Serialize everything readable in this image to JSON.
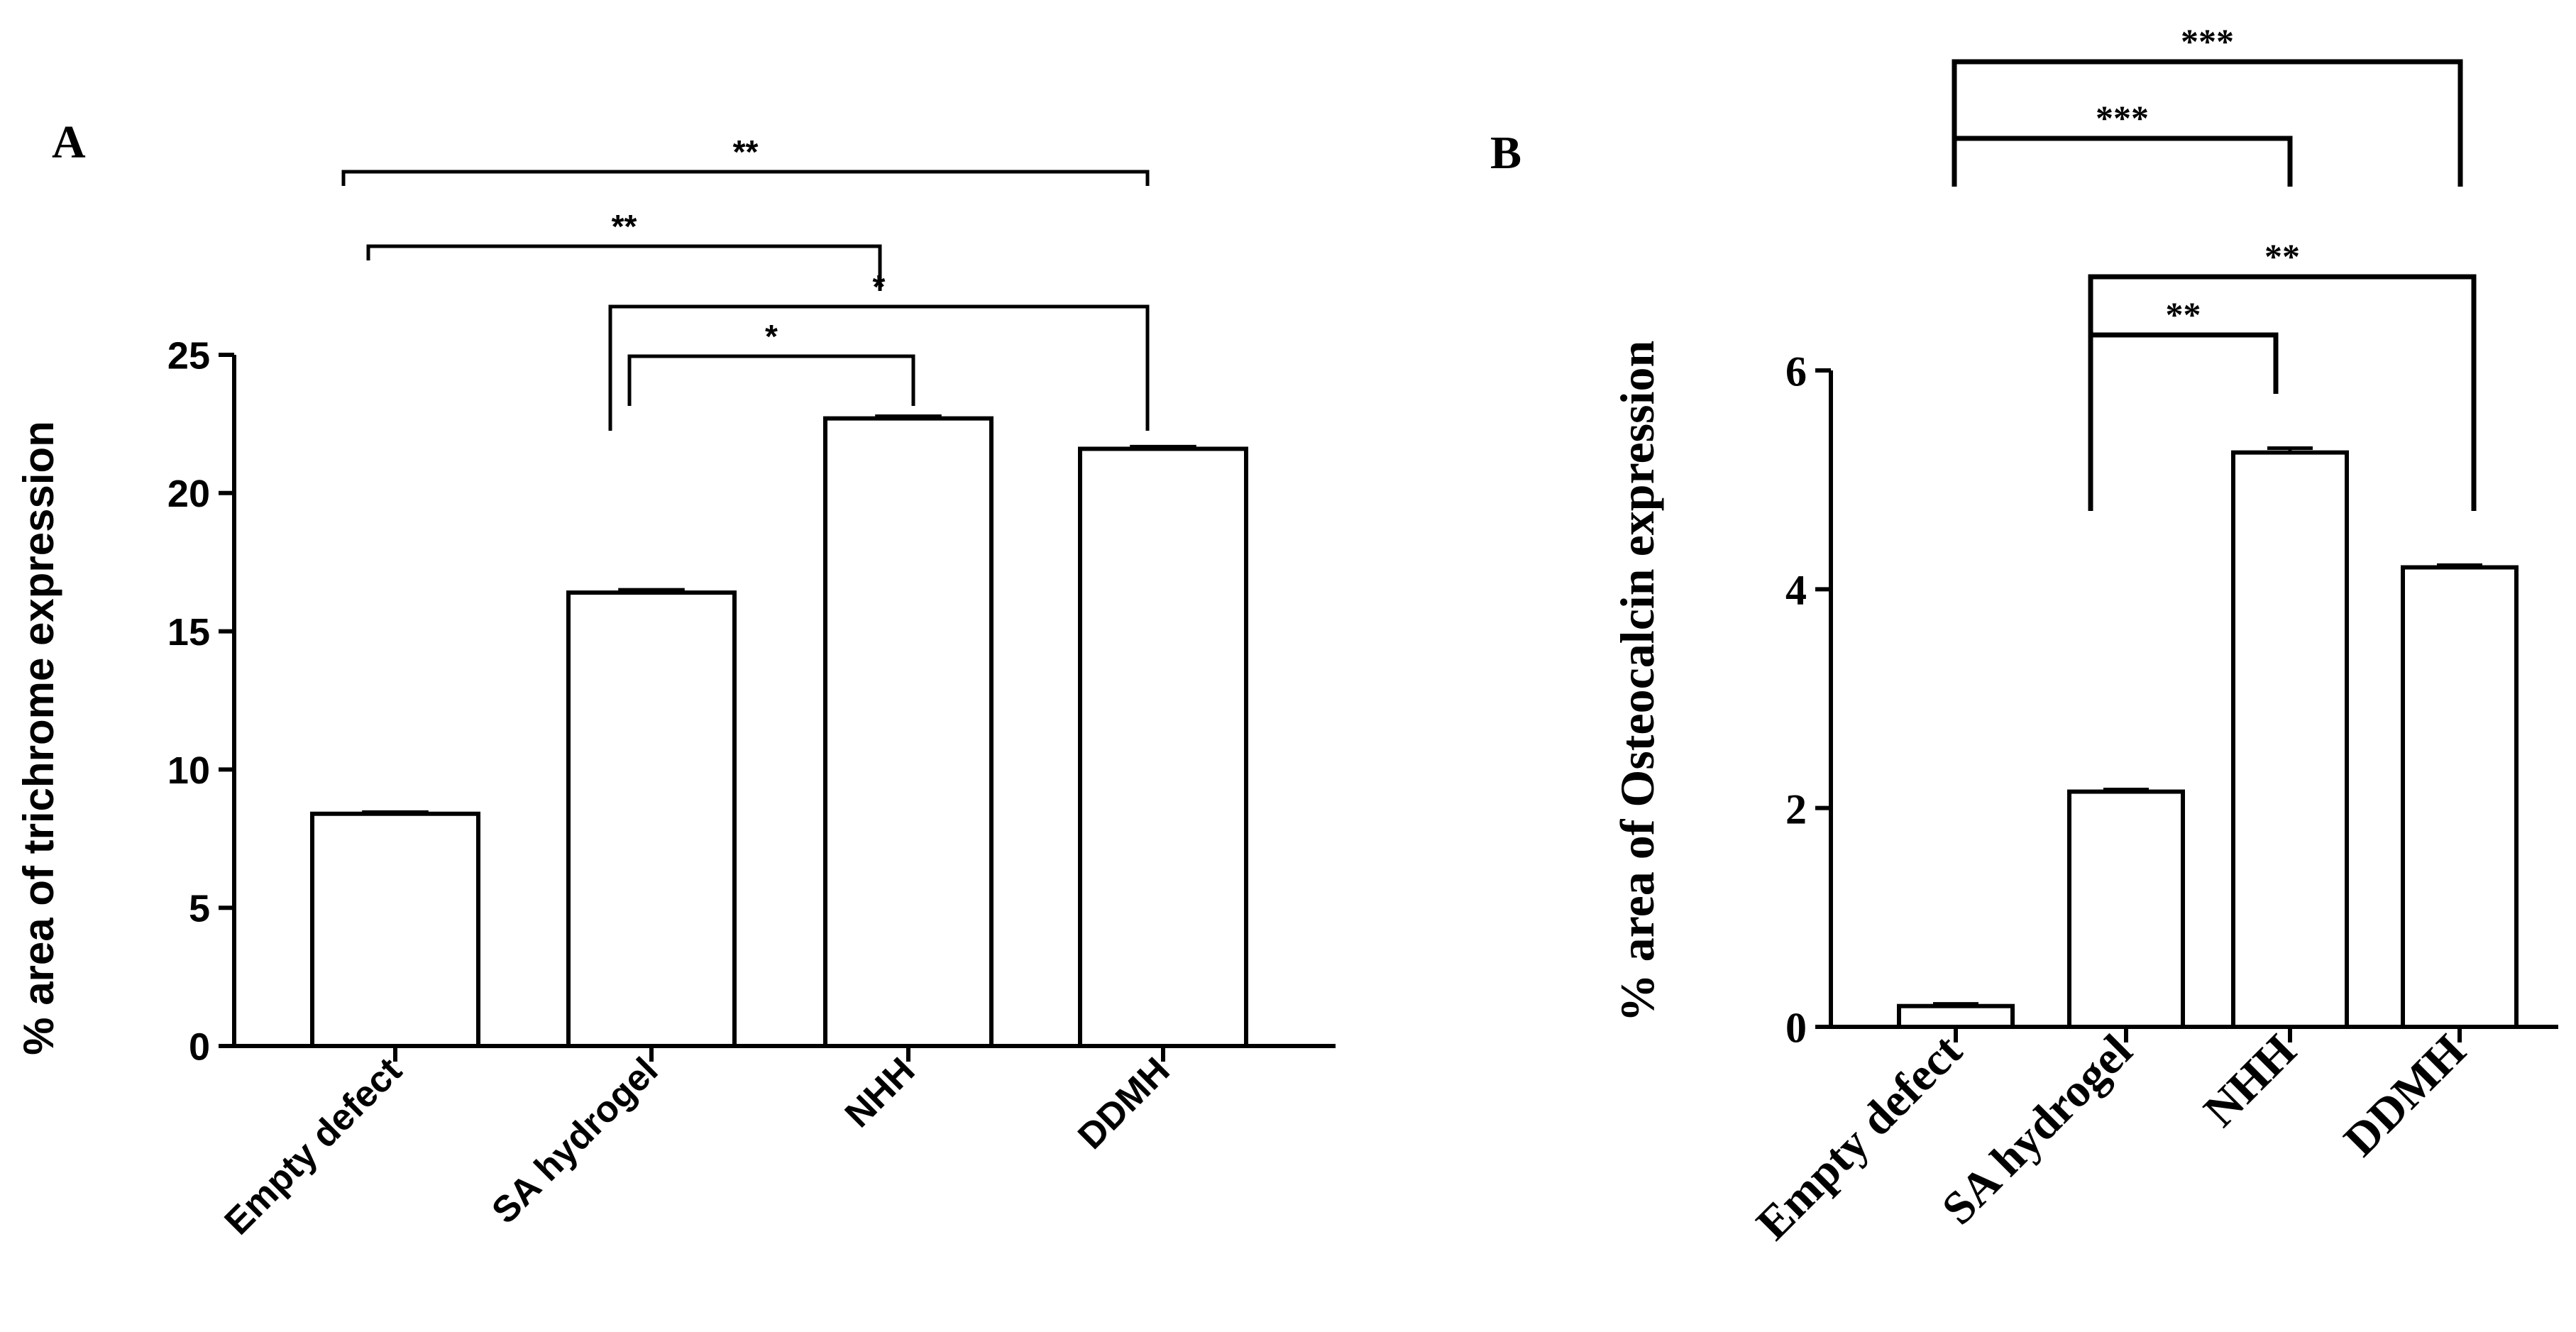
{
  "chart_data": [
    {
      "panel_label": "A",
      "type": "bar",
      "categories": [
        "Empty defect",
        "SA hydrogel",
        "NHH",
        "DDMH"
      ],
      "values": [
        8.4,
        16.4,
        22.7,
        21.6
      ],
      "errors": [
        0.06,
        0.1,
        0.08,
        0.08
      ],
      "title": "",
      "xlabel": "",
      "ylabel": "% area of trichrome expression",
      "ylim": [
        0,
        25
      ],
      "yticks": [
        "0",
        "5",
        "10",
        "15",
        "20",
        "25"
      ],
      "ytick_values": [
        0,
        5,
        10,
        15,
        20,
        25
      ],
      "grid": false,
      "significance": [
        {
          "from": "Empty defect",
          "to": "DDMH",
          "label": "**"
        },
        {
          "from": "Empty defect",
          "to": "NHH",
          "label": "**"
        },
        {
          "from": "SA hydrogel",
          "to": "DDMH",
          "label": "*"
        },
        {
          "from": "SA hydrogel",
          "to": "NHH",
          "label": "*"
        }
      ]
    },
    {
      "panel_label": "B",
      "type": "bar",
      "categories": [
        "Empty defect",
        "SA hydrogel",
        "NHH",
        "DDMH"
      ],
      "values": [
        0.19,
        2.15,
        5.25,
        4.2
      ],
      "errors": [
        0.02,
        0.02,
        0.04,
        0.02
      ],
      "title": "",
      "xlabel": "",
      "ylabel": "% area of Osteocalcin expression",
      "ylim": [
        0,
        6
      ],
      "yticks": [
        "0",
        "2",
        "4",
        "6"
      ],
      "ytick_values": [
        0,
        2,
        4,
        6
      ],
      "grid": false,
      "significance": [
        {
          "from": "Empty defect",
          "to": "DDMH",
          "label": "***"
        },
        {
          "from": "Empty defect",
          "to": "NHH",
          "label": "***"
        },
        {
          "from": "SA hydrogel",
          "to": "DDMH",
          "label": "**"
        },
        {
          "from": "SA hydrogel",
          "to": "NHH",
          "label": "**"
        }
      ]
    }
  ]
}
